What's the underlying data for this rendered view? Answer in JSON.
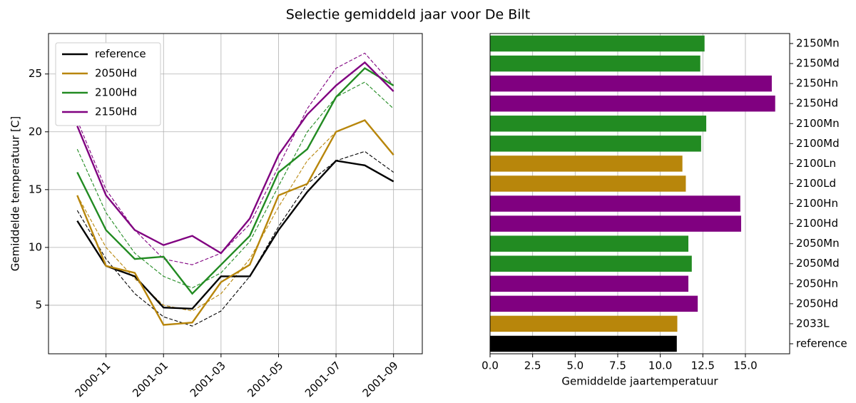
{
  "title": "Selectie gemiddeld jaar voor De Bilt",
  "chart_data": [
    {
      "type": "line",
      "ylabel": "Gemiddelde temperatuur [C]",
      "x": [
        "2000-10",
        "2000-11",
        "2000-12",
        "2001-01",
        "2001-02",
        "2001-03",
        "2001-04",
        "2001-05",
        "2001-06",
        "2001-07",
        "2001-08",
        "2001-09"
      ],
      "xlim": [
        "2000-09",
        "2001-10"
      ],
      "xticks": [
        "2000-11",
        "2001-01",
        "2001-03",
        "2001-05",
        "2001-07",
        "2001-09"
      ],
      "ylim": [
        0.8,
        28.5
      ],
      "yticks": [
        5,
        10,
        15,
        20,
        25
      ],
      "grid": true,
      "legend": "upper left",
      "series": [
        {
          "name": "reference",
          "color": "#000000",
          "values": [
            12.3,
            8.4,
            7.5,
            4.8,
            4.7,
            7.5,
            7.5,
            11.5,
            14.8,
            17.5,
            17.1,
            15.7
          ],
          "trend": [
            13.2,
            9.0,
            6.0,
            4.0,
            3.2,
            4.5,
            7.5,
            11.8,
            15.5,
            17.5,
            18.3,
            16.5
          ]
        },
        {
          "name": "2050Hd",
          "color": "#b8860b",
          "values": [
            14.5,
            8.4,
            7.8,
            3.3,
            3.5,
            7.0,
            8.5,
            14.5,
            15.5,
            20.0,
            21.0,
            18.0
          ],
          "trend": [
            14.5,
            10.0,
            7.3,
            5.0,
            4.5,
            6.0,
            9.0,
            13.5,
            17.5,
            20.0,
            21.0,
            18.0
          ]
        },
        {
          "name": "2100Hd",
          "color": "#228b22",
          "values": [
            16.5,
            11.5,
            9.0,
            9.2,
            6.0,
            8.5,
            11.0,
            16.5,
            18.5,
            23.0,
            25.5,
            24.0
          ],
          "trend": [
            18.5,
            13.0,
            9.5,
            7.5,
            6.5,
            7.8,
            10.5,
            15.3,
            20.0,
            23.0,
            24.3,
            22.0
          ]
        },
        {
          "name": "2150Hd",
          "color": "#800080",
          "values": [
            20.5,
            14.5,
            11.5,
            10.2,
            11.0,
            9.5,
            12.5,
            18.0,
            21.5,
            24.0,
            26.0,
            23.5
          ],
          "trend": [
            21.0,
            15.0,
            11.5,
            9.0,
            8.5,
            9.5,
            12.0,
            17.0,
            22.0,
            25.5,
            26.8,
            24.0
          ]
        }
      ]
    },
    {
      "type": "barh",
      "xlabel": "Gemiddelde jaartemperatuur",
      "categories": [
        "2150Mn",
        "2150Md",
        "2150Hn",
        "2150Hd",
        "2100Mn",
        "2100Md",
        "2100Ln",
        "2100Ld",
        "2100Hn",
        "2100Hd",
        "2050Mn",
        "2050Md",
        "2050Hn",
        "2050Hd",
        "2033L",
        "reference"
      ],
      "values": [
        12.6,
        12.35,
        16.55,
        16.75,
        12.7,
        12.4,
        11.3,
        11.5,
        14.7,
        14.75,
        11.65,
        11.85,
        11.65,
        12.2,
        11.0,
        10.97
      ],
      "colors": [
        "#228b22",
        "#228b22",
        "#800080",
        "#800080",
        "#228b22",
        "#228b22",
        "#b8860b",
        "#b8860b",
        "#800080",
        "#800080",
        "#228b22",
        "#228b22",
        "#800080",
        "#800080",
        "#b8860b",
        "#000000"
      ],
      "xlim": [
        0,
        17.6
      ],
      "xticks": [
        {
          "value": 0,
          "label": "0.0"
        },
        {
          "value": 2.5,
          "label": "2.5"
        },
        {
          "value": 5,
          "label": "5.0"
        },
        {
          "value": 7.5,
          "label": "7.5"
        },
        {
          "value": 10,
          "label": "10.0"
        },
        {
          "value": 12.5,
          "label": "12.5"
        },
        {
          "value": 15,
          "label": "15.0"
        }
      ],
      "grid": true
    }
  ]
}
